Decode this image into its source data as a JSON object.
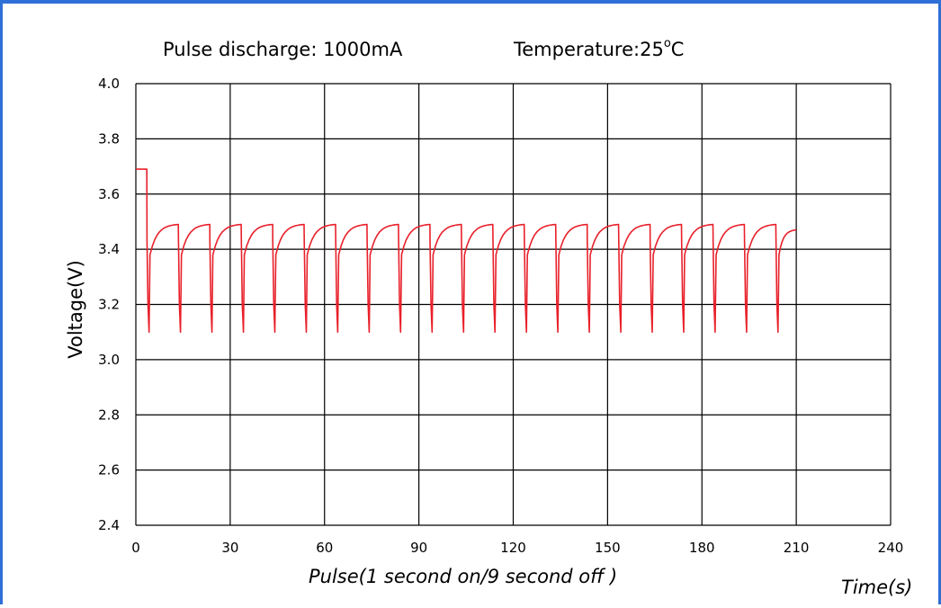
{
  "chart_data": {
    "type": "line",
    "title_left": "Pulse discharge: 1000mA",
    "title_right_prefix": "Temperature:25",
    "title_right_degree": "o",
    "title_right_suffix": "C",
    "xlabel": "Pulse(1 second on/9 second off )",
    "xunit": "Time(s)",
    "ylabel": "Voltage(V)",
    "xlim": [
      0,
      240
    ],
    "ylim": [
      2.4,
      4.0
    ],
    "x_ticks": [
      "0",
      "30",
      "60",
      "90",
      "120",
      "150",
      "180",
      "210",
      "240"
    ],
    "y_ticks": [
      "2.4",
      "2.6",
      "2.8",
      "3.0",
      "3.2",
      "3.4",
      "3.6",
      "3.8",
      "4.0"
    ],
    "grid": true,
    "series_color": "#e8202a",
    "initial_voltage": 3.69,
    "pulse_period_s": 10,
    "pulse_on_s": 1,
    "pulse_start_times": [
      3.5,
      13.5,
      23.5,
      33.5,
      43.5,
      53.5,
      63.5,
      73.5,
      83.5,
      93.5,
      103.5,
      113.5,
      123.5,
      133.5,
      143.5,
      153.5,
      163.5,
      173.5,
      183.5,
      193.5,
      203.5
    ],
    "pulse_min_voltage": 3.1,
    "recovery_start_voltage": 3.38,
    "recovery_peak_voltage": 3.49,
    "end_time": 210,
    "end_voltage": 3.47
  }
}
